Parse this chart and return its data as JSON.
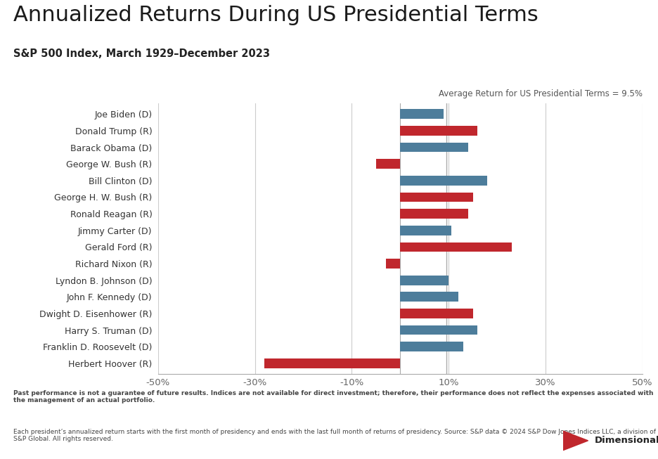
{
  "title": "Annualized Returns During US Presidential Terms",
  "subtitle": "S&P 500 Index, March 1929–December 2023",
  "avg_label": "Average Return for US Presidential Terms = 9.5%",
  "presidents": [
    "Joe Biden (D)",
    "Donald Trump (R)",
    "Barack Obama (D)",
    "George W. Bush (R)",
    "Bill Clinton (D)",
    "George H. W. Bush (R)",
    "Ronald Reagan (R)",
    "Jimmy Carter (D)",
    "Gerald Ford (R)",
    "Richard Nixon (R)",
    "Lyndon B. Johnson (D)",
    "John F. Kennedy (D)",
    "Dwight D. Eisenhower (R)",
    "Harry S. Truman (D)",
    "Franklin D. Roosevelt (D)",
    "Herbert Hoover (R)"
  ],
  "values": [
    9.0,
    16.0,
    14.0,
    -5.0,
    18.0,
    15.0,
    14.0,
    10.5,
    23.0,
    -3.0,
    10.0,
    12.0,
    15.0,
    16.0,
    13.0,
    -28.0
  ],
  "parties": [
    "D",
    "R",
    "D",
    "R",
    "D",
    "R",
    "R",
    "D",
    "R",
    "R",
    "D",
    "D",
    "R",
    "D",
    "D",
    "R"
  ],
  "dem_color": "#4d7d9b",
  "rep_color": "#c0272d",
  "background_color": "#ffffff",
  "xlim": [
    -50,
    50
  ],
  "xticks": [
    -50,
    -30,
    -10,
    10,
    30,
    50
  ],
  "xticklabels": [
    "-50%",
    "-30%",
    "-10%",
    "10%",
    "30%",
    "50%"
  ],
  "footnote_bold": "Past performance is not a guarantee of future results. Indices are not available for direct investment; therefore, their performance does not reflect the expenses associated with the management of an actual portfolio.",
  "footnote_normal": " Each president’s annualized return starts with the first month of presidency and ends with the last full month of returns of presidency. Source: S&P data © 2024 S&P Dow Jones Indices LLC, a division of S&P Global. All rights reserved.",
  "title_fontsize": 22,
  "subtitle_fontsize": 10.5,
  "bar_height": 0.58,
  "avg_line_x": 9.5,
  "grid_color": "#cccccc",
  "spine_color": "#aaaaaa",
  "label_color": "#333333",
  "tick_color": "#666666",
  "avg_line_color": "#888888",
  "footnote_fontsize": 6.5,
  "dim_logo_color": "#c0272d",
  "dim_text_color": "#222222"
}
